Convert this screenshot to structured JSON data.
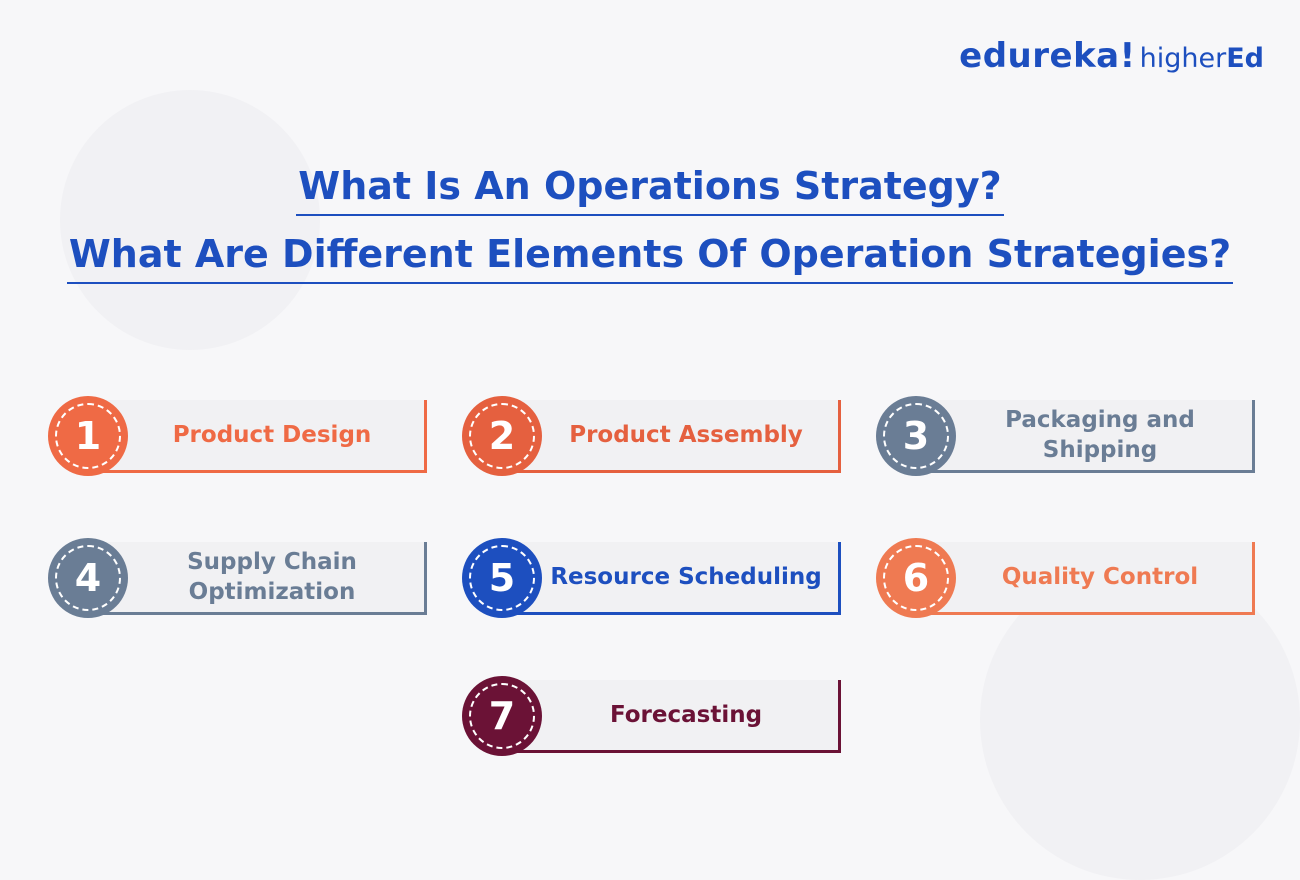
{
  "brand": {
    "logo_main": "edureka!",
    "logo_sub_a": "higher",
    "logo_sub_b": "Ed"
  },
  "title": {
    "line1": "What Is An Operations Strategy?",
    "line2": "What Are Different Elements Of Operation Strategies?"
  },
  "colors": {
    "primary_blue": "#1d4fbf",
    "orange": "#ef6a45",
    "slate": "#6a7d95",
    "maroon": "#6b1236"
  },
  "items": [
    {
      "number": "1",
      "label": "Product Design",
      "color": "#ef6a45"
    },
    {
      "number": "2",
      "label": "Product Assembly",
      "color": "#e5603f"
    },
    {
      "number": "3",
      "label": "Packaging and Shipping",
      "color": "#6a7d95"
    },
    {
      "number": "4",
      "label": "Supply Chain Optimization",
      "color": "#6a7d95"
    },
    {
      "number": "5",
      "label": "Resource Scheduling",
      "color": "#1d4fbf"
    },
    {
      "number": "6",
      "label": "Quality Control",
      "color": "#ef7a52"
    },
    {
      "number": "7",
      "label": "Forecasting",
      "color": "#6b1236"
    }
  ]
}
